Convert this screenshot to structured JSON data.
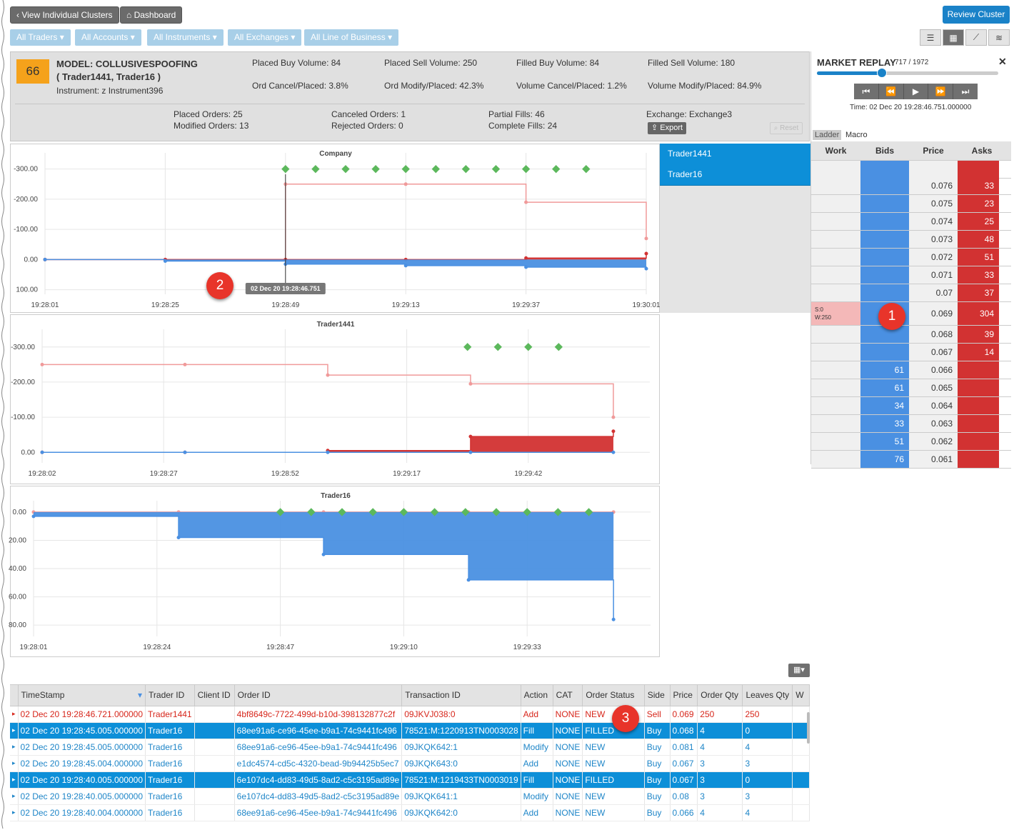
{
  "toolbar": {
    "back_label": "View Individual Clusters",
    "dashboard_label": "Dashboard",
    "review_label": "Review Cluster"
  },
  "filters": [
    "All Traders",
    "All Accounts",
    "All Instruments",
    "All Exchanges",
    "All Line of Business"
  ],
  "view_icons": [
    "list-view-icon",
    "grid-view-icon",
    "chart-view-icon",
    "layers-view-icon"
  ],
  "model": {
    "score": "66",
    "title": "MODEL: COLLUSIVESPOOFING",
    "traders": "( Trader1441, Trader16 )",
    "instrument": "Instrument: z Instrument396"
  },
  "stats": {
    "placed_buy": "Placed Buy Volume: 84",
    "placed_sell": "Placed Sell Volume: 250",
    "filled_buy": "Filled Buy Volume: 84",
    "filled_sell": "Filled Sell Volume: 180",
    "ord_cancel": "Ord Cancel/Placed: 3.8%",
    "ord_modify": "Ord Modify/Placed: 42.3%",
    "vol_cancel": "Volume Cancel/Placed: 1.2%",
    "vol_modify": "Volume Modify/Placed: 84.9%",
    "placed_orders": "Placed Orders: 25",
    "modified_orders": "Modified Orders: 13",
    "canceled_orders": "Canceled Orders: 1",
    "rejected_orders": "Rejected Orders: 0",
    "partial_fills": "Partial Fills: 46",
    "complete_fills": "Complete Fills: 24",
    "exchange": "Exchange: Exchange3",
    "export_label": "Export",
    "reset_label": "Reset"
  },
  "trader_list": [
    "Trader1441",
    "Trader16"
  ],
  "replay": {
    "title": "MARKET REPLAY",
    "counter": "717 / 1972",
    "progress": 0.36,
    "time": "Time: 02 Dec 20 19:28:46.751.000000",
    "tabs": [
      "Ladder",
      "Macro"
    ],
    "columns": [
      "Work",
      "Bids",
      "Price",
      "Asks"
    ],
    "rows": [
      {
        "work": "",
        "bid": "",
        "price": "",
        "ask": ""
      },
      {
        "work": "",
        "bid": "",
        "price": "0.076",
        "ask": "33"
      },
      {
        "work": "",
        "bid": "",
        "price": "0.075",
        "ask": "23"
      },
      {
        "work": "",
        "bid": "",
        "price": "0.074",
        "ask": "25"
      },
      {
        "work": "",
        "bid": "",
        "price": "0.073",
        "ask": "48"
      },
      {
        "work": "",
        "bid": "",
        "price": "0.072",
        "ask": "51"
      },
      {
        "work": "",
        "bid": "",
        "price": "0.071",
        "ask": "33"
      },
      {
        "work": "",
        "bid": "",
        "price": "0.07",
        "ask": "37"
      },
      {
        "work": "S:0\nW:250",
        "bid": "",
        "price": "0.069",
        "ask": "304"
      },
      {
        "work": "",
        "bid": "",
        "price": "0.068",
        "ask": "39"
      },
      {
        "work": "",
        "bid": "",
        "price": "0.067",
        "ask": "14"
      },
      {
        "work": "",
        "bid": "61",
        "price": "0.066",
        "ask": ""
      },
      {
        "work": "",
        "bid": "61",
        "price": "0.065",
        "ask": ""
      },
      {
        "work": "",
        "bid": "34",
        "price": "0.064",
        "ask": ""
      },
      {
        "work": "",
        "bid": "33",
        "price": "0.063",
        "ask": ""
      },
      {
        "work": "",
        "bid": "51",
        "price": "0.062",
        "ask": ""
      },
      {
        "work": "",
        "bid": "76",
        "price": "0.061",
        "ask": ""
      }
    ]
  },
  "badges": [
    "1",
    "2",
    "3"
  ],
  "cursor_label": "02 Dec 20 19:28:46.751",
  "chart_data": [
    {
      "type": "area",
      "title": "Company",
      "x": [
        "19:28:01",
        "19:28:25",
        "19:28:49",
        "19:29:13",
        "19:29:37",
        "19:30:01"
      ],
      "ytick_labels": [
        "-300.00",
        "-200.00",
        "-100.00",
        "0.00",
        "100.00"
      ],
      "ylim": [
        -330,
        115
      ],
      "series": [
        {
          "values": [
            0,
            0,
            -250,
            -250,
            -190,
            -70
          ]
        },
        {
          "values": [
            0,
            0,
            0,
            0,
            -5,
            -20
          ]
        },
        {
          "values": [
            0,
            5,
            15,
            20,
            25,
            30
          ]
        }
      ],
      "markers": -300
    },
    {
      "type": "area",
      "title": "Trader1441",
      "x": [
        "19:28:02",
        "19:28:27",
        "19:28:52",
        "19:29:17",
        "19:29:42"
      ],
      "ytick_labels": [
        "-300.00",
        "-200.00",
        "-100.00",
        "0.00"
      ],
      "ylim": [
        -330,
        30
      ],
      "series": [
        {
          "values": [
            -250,
            -250,
            -220,
            -195,
            -100
          ]
        },
        {
          "values": [
            0,
            0,
            -5,
            -45,
            -60
          ]
        },
        {
          "values": [
            0,
            0,
            0,
            0,
            0
          ]
        }
      ],
      "markers": -300
    },
    {
      "type": "area",
      "title": "Trader16",
      "x": [
        "19:28:01",
        "19:28:24",
        "19:28:47",
        "19:29:10",
        "19:29:33"
      ],
      "ytick_labels": [
        "0.00",
        "20.00",
        "40.00",
        "60.00",
        "80.00"
      ],
      "ylim": [
        -3,
        88
      ],
      "series": [
        {
          "values": [
            0,
            0,
            0,
            0,
            0
          ]
        },
        {
          "values": [
            3,
            18,
            30,
            48,
            76
          ]
        }
      ],
      "markers": 0
    }
  ],
  "table": {
    "columns": [
      "TimeStamp",
      "Trader ID",
      "Client ID",
      "Order ID",
      "Transaction ID",
      "Action",
      "CAT",
      "Order Status",
      "Side",
      "Price",
      "Order Qty",
      "Leaves Qty",
      "W"
    ],
    "rows": [
      {
        "style": "red",
        "cells": [
          "02 Dec 20 19:28:46.721.000000",
          "Trader1441",
          "",
          "4bf8649c-7722-499d-b10d-398132877c2f",
          "09JKVJ038:0",
          "Add",
          "NONE",
          "NEW",
          "Sell",
          "0.069",
          "250",
          "250",
          ""
        ]
      },
      {
        "style": "sel",
        "cells": [
          "02 Dec 20 19:28:45.005.000000",
          "Trader16",
          "",
          "68ee91a6-ce96-45ee-b9a1-74c9441fc496",
          "78521:M:1220913TN0003028",
          "Fill",
          "NONE",
          "FILLED",
          "Buy",
          "0.068",
          "4",
          "0",
          ""
        ]
      },
      {
        "style": "blue",
        "cells": [
          "02 Dec 20 19:28:45.005.000000",
          "Trader16",
          "",
          "68ee91a6-ce96-45ee-b9a1-74c9441fc496",
          "09JKQK642:1",
          "Modify",
          "NONE",
          "NEW",
          "Buy",
          "0.081",
          "4",
          "4",
          ""
        ]
      },
      {
        "style": "blue",
        "cells": [
          "02 Dec 20 19:28:45.004.000000",
          "Trader16",
          "",
          "e1dc4574-cd5c-4320-bead-9b94425b5ec7",
          "09JKQK643:0",
          "Add",
          "NONE",
          "NEW",
          "Buy",
          "0.067",
          "3",
          "3",
          ""
        ]
      },
      {
        "style": "sel",
        "cells": [
          "02 Dec 20 19:28:40.005.000000",
          "Trader16",
          "",
          "6e107dc4-dd83-49d5-8ad2-c5c3195ad89e",
          "78521:M:1219433TN0003019",
          "Fill",
          "NONE",
          "FILLED",
          "Buy",
          "0.067",
          "3",
          "0",
          ""
        ]
      },
      {
        "style": "blue",
        "cells": [
          "02 Dec 20 19:28:40.005.000000",
          "Trader16",
          "",
          "6e107dc4-dd83-49d5-8ad2-c5c3195ad89e",
          "09JKQK641:1",
          "Modify",
          "NONE",
          "NEW",
          "Buy",
          "0.08",
          "3",
          "3",
          ""
        ]
      },
      {
        "style": "blue",
        "cells": [
          "02 Dec 20 19:28:40.004.000000",
          "Trader16",
          "",
          "68ee91a6-ce96-45ee-b9a1-74c9441fc496",
          "09JKQK642:0",
          "Add",
          "NONE",
          "NEW",
          "Buy",
          "0.066",
          "4",
          "4",
          ""
        ]
      }
    ]
  },
  "colors": {
    "sell": "#d23232",
    "buy": "#4a90e2",
    "marker": "#5cb85c",
    "selected": "#0d8fd8"
  }
}
